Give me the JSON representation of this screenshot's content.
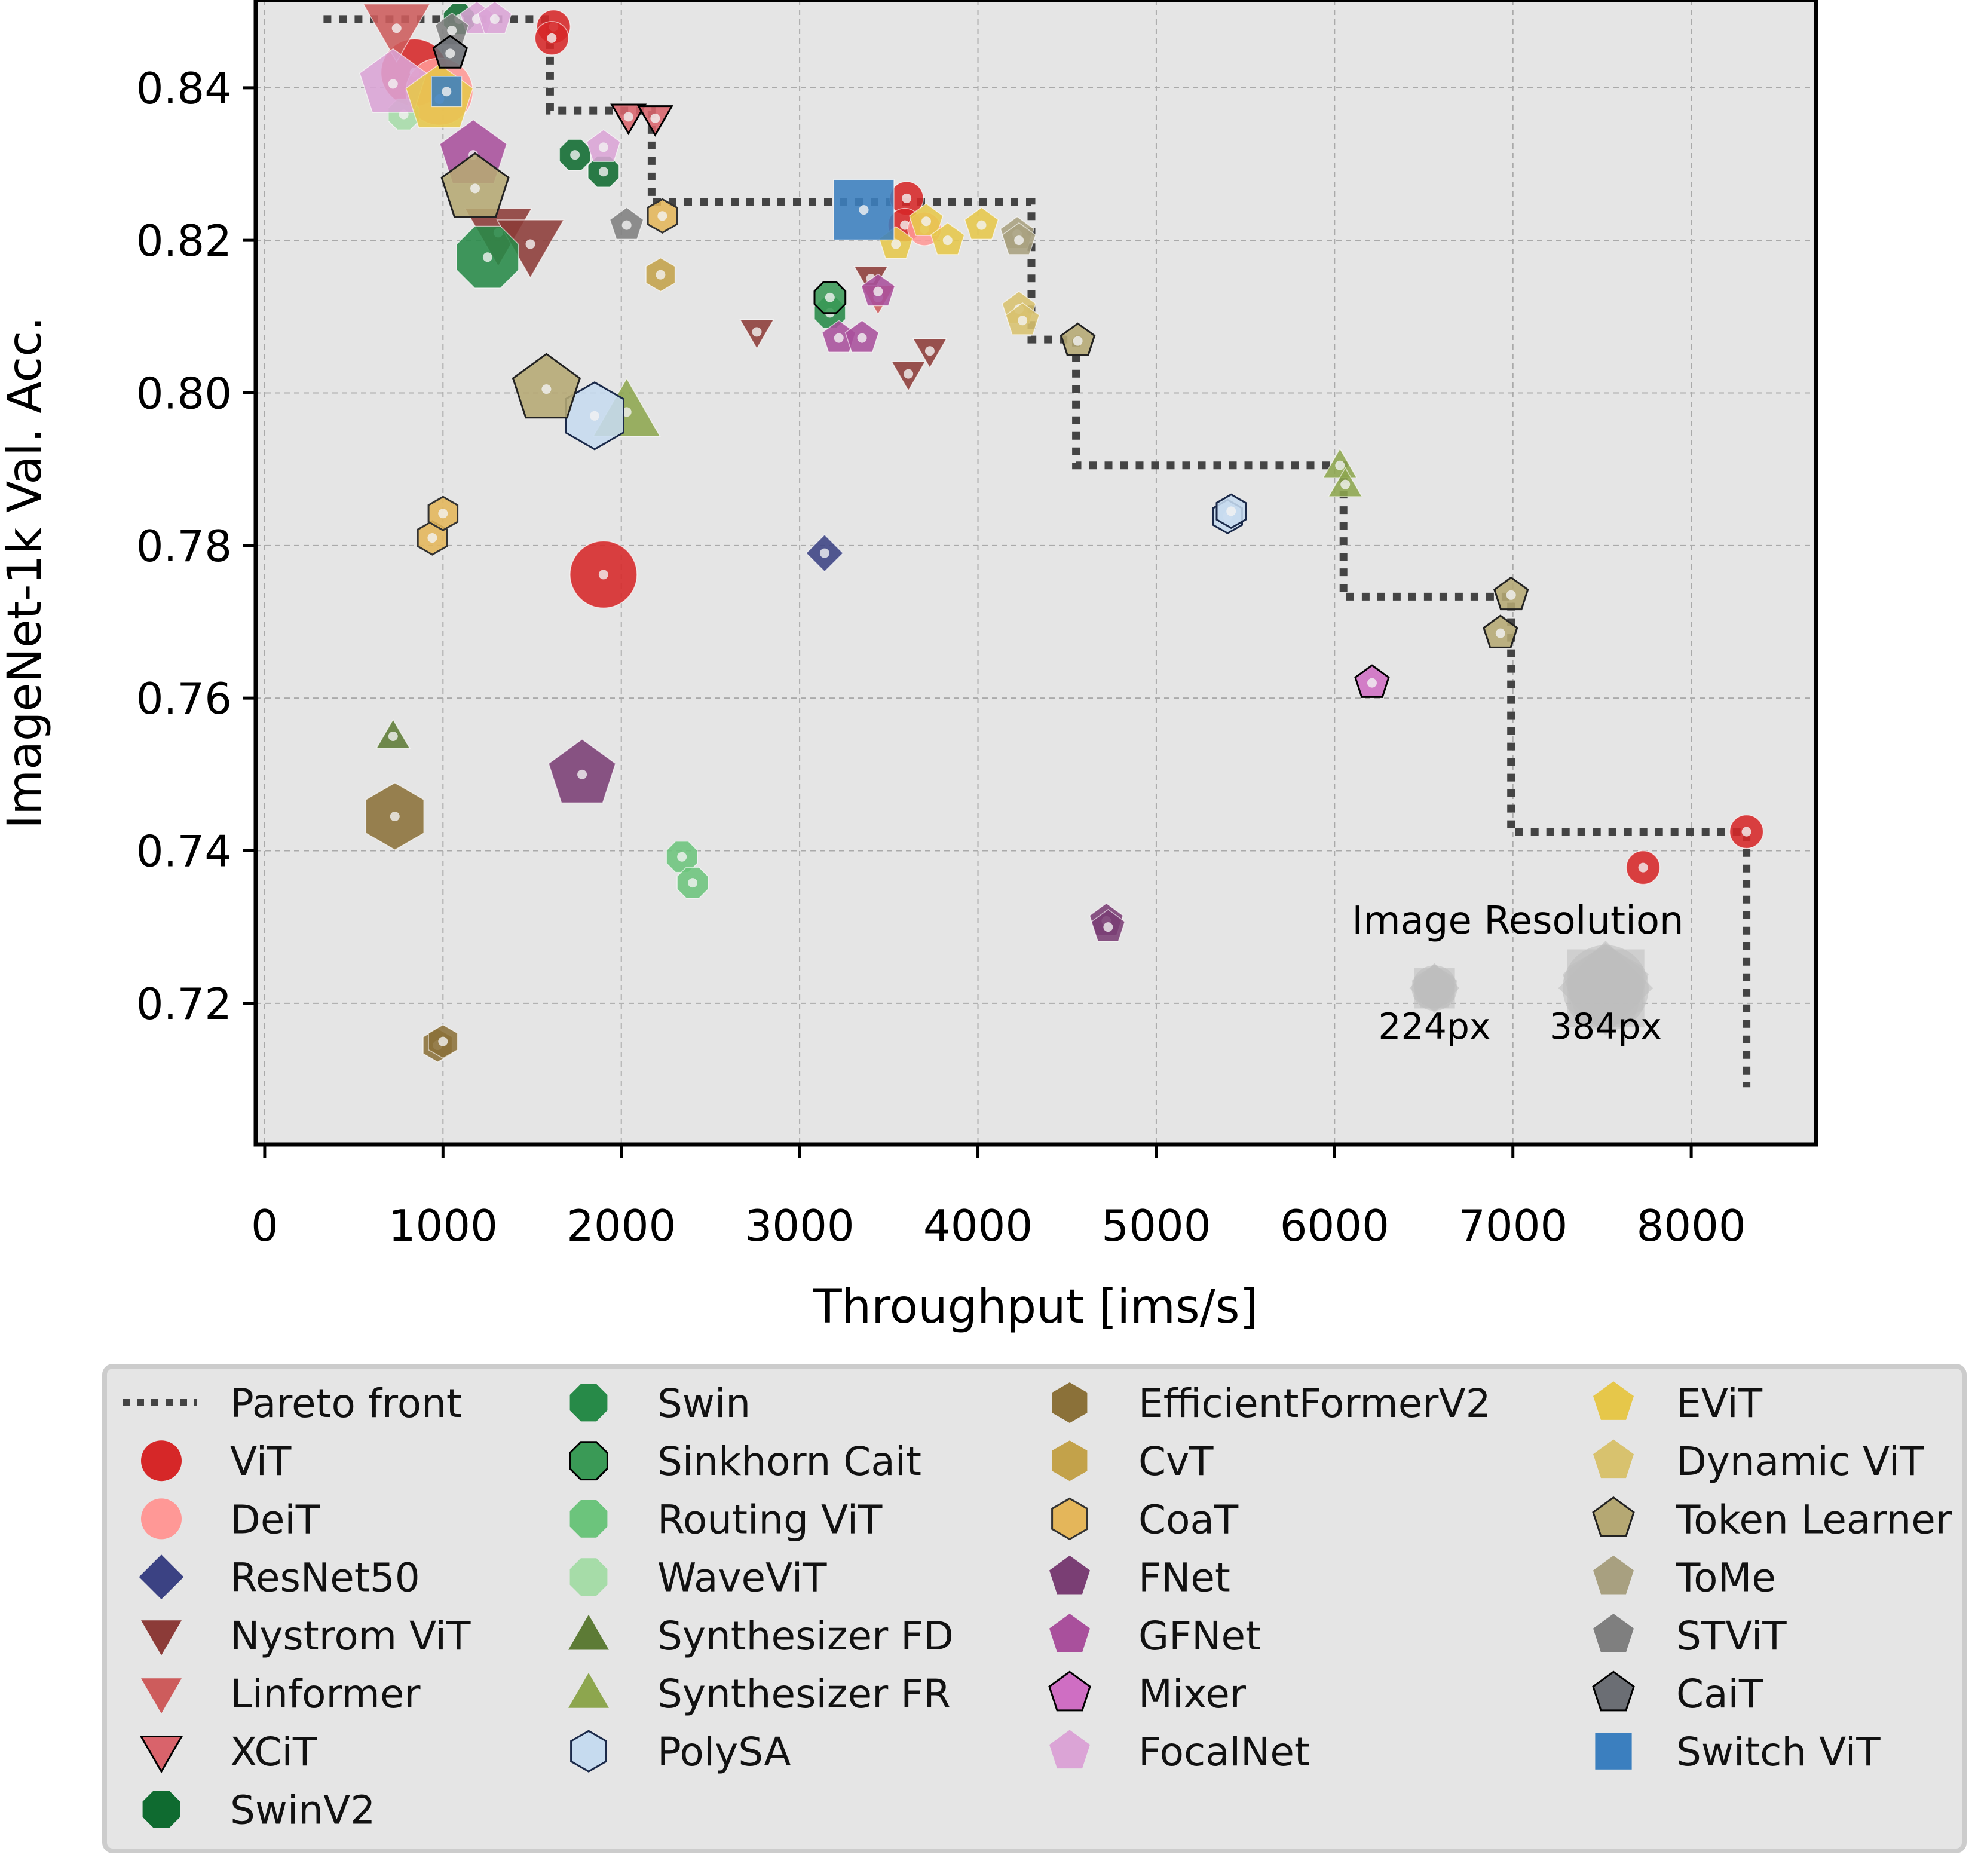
{
  "chart_data": {
    "type": "scatter",
    "xlabel": "Throughput [ims/s]",
    "ylabel": "ImageNet-1k Val. Acc.",
    "xlim": [
      -50,
      8700
    ],
    "ylim": [
      0.7015,
      0.8515
    ],
    "x_ticks": [
      0,
      1000,
      2000,
      3000,
      4000,
      5000,
      6000,
      7000,
      8000
    ],
    "x_tick_labels": [
      "0",
      "1000",
      "2000",
      "3000",
      "4000",
      "5000",
      "6000",
      "7000",
      "8000"
    ],
    "y_ticks": [
      0.72,
      0.74,
      0.76,
      0.78,
      0.8,
      0.82,
      0.84
    ],
    "y_tick_labels": [
      "0.72",
      "0.74",
      "0.76",
      "0.78",
      "0.80",
      "0.82",
      "0.84"
    ],
    "grid": true,
    "legend": {
      "placement": "below",
      "columns": 4
    },
    "resolution_legend": {
      "title": "Image Resolution",
      "small_label": "224px",
      "large_label": "384px",
      "small_x": 6560,
      "large_x": 7520,
      "y": 0.722
    },
    "pareto_front": {
      "name": "Pareto front",
      "color": "#444444",
      "x": [
        330,
        330,
        1600,
        1600,
        2170,
        2170,
        4300,
        4300,
        4550,
        4550,
        6050,
        6050,
        6990,
        6990,
        8310,
        8310
      ],
      "y": [
        0.849,
        0.849,
        0.849,
        0.837,
        0.837,
        0.825,
        0.825,
        0.807,
        0.807,
        0.7905,
        0.7905,
        0.7733,
        0.7733,
        0.7425,
        0.7425,
        0.709
      ]
    },
    "series": [
      {
        "name": "ViT",
        "marker": "circle",
        "color": "#d62728",
        "points": [
          {
            "x": 1620,
            "y": 0.848,
            "s": "m"
          },
          {
            "x": 1610,
            "y": 0.8465,
            "s": "m"
          },
          {
            "x": 840,
            "y": 0.842,
            "s": "l"
          },
          {
            "x": 1900,
            "y": 0.7762,
            "s": "l"
          },
          {
            "x": 3600,
            "y": 0.8255,
            "s": "m"
          },
          {
            "x": 3590,
            "y": 0.822,
            "s": "m"
          },
          {
            "x": 8310,
            "y": 0.7425,
            "s": "m"
          },
          {
            "x": 7730,
            "y": 0.7378,
            "s": "m"
          }
        ]
      },
      {
        "name": "DeiT",
        "marker": "circle",
        "color": "#ff9896",
        "points": [
          {
            "x": 980,
            "y": 0.8395,
            "s": "l"
          },
          {
            "x": 3700,
            "y": 0.8215,
            "s": "m"
          }
        ]
      },
      {
        "name": "ResNet50",
        "marker": "diamond",
        "color": "#3b4283",
        "points": [
          {
            "x": 3140,
            "y": 0.779,
            "s": "m"
          }
        ]
      },
      {
        "name": "Nystrom ViT",
        "marker": "triangle-down",
        "color": "#8c3b38",
        "points": [
          {
            "x": 1310,
            "y": 0.821,
            "s": "l"
          },
          {
            "x": 1490,
            "y": 0.8195,
            "s": "l"
          },
          {
            "x": 2760,
            "y": 0.808,
            "s": "m"
          },
          {
            "x": 3610,
            "y": 0.8025,
            "s": "m"
          },
          {
            "x": 3730,
            "y": 0.8055,
            "s": "m"
          },
          {
            "x": 3400,
            "y": 0.815,
            "s": "m"
          }
        ]
      },
      {
        "name": "Linformer",
        "marker": "triangle-down",
        "color": "#cd5c5c",
        "points": [
          {
            "x": 740,
            "y": 0.8478,
            "s": "l"
          },
          {
            "x": 3440,
            "y": 0.8125,
            "s": "m"
          }
        ]
      },
      {
        "name": "XCiT",
        "marker": "triangle-down",
        "color": "#d9636b",
        "points": [
          {
            "x": 2040,
            "y": 0.8362,
            "s": "m"
          },
          {
            "x": 2190,
            "y": 0.836,
            "s": "m"
          }
        ]
      },
      {
        "name": "SwinV2",
        "marker": "octagon",
        "color": "#0f6b30",
        "points": [
          {
            "x": 1740,
            "y": 0.8312,
            "s": "m"
          },
          {
            "x": 1900,
            "y": 0.829,
            "s": "m"
          },
          {
            "x": 1090,
            "y": 0.849,
            "s": "m"
          }
        ]
      },
      {
        "name": "Swin",
        "marker": "octagon",
        "color": "#278a48",
        "points": [
          {
            "x": 1250,
            "y": 0.8178,
            "s": "l"
          },
          {
            "x": 3170,
            "y": 0.8105,
            "s": "m"
          }
        ]
      },
      {
        "name": "Sinkhorn Cait",
        "marker": "octagon",
        "color": "#3a9a56",
        "points": [
          {
            "x": 3170,
            "y": 0.8125,
            "s": "m"
          }
        ]
      },
      {
        "name": "Routing ViT",
        "marker": "octagon",
        "color": "#6cc47c",
        "points": [
          {
            "x": 2340,
            "y": 0.7392,
            "s": "m"
          },
          {
            "x": 2400,
            "y": 0.7358,
            "s": "m"
          }
        ]
      },
      {
        "name": "WaveViT",
        "marker": "octagon",
        "color": "#a6dca8",
        "points": [
          {
            "x": 780,
            "y": 0.8365,
            "s": "m"
          }
        ]
      },
      {
        "name": "Synthesizer FD",
        "marker": "triangle-up",
        "color": "#5d7b36",
        "points": [
          {
            "x": 720,
            "y": 0.755,
            "s": "m"
          }
        ]
      },
      {
        "name": "Synthesizer FR",
        "marker": "triangle-up",
        "color": "#8da64e",
        "points": [
          {
            "x": 2030,
            "y": 0.7975,
            "s": "l"
          },
          {
            "x": 6030,
            "y": 0.7905,
            "s": "m"
          },
          {
            "x": 6060,
            "y": 0.788,
            "s": "m"
          }
        ]
      },
      {
        "name": "PolySA",
        "marker": "hexagon",
        "color": "#c6dbef",
        "points": [
          {
            "x": 1850,
            "y": 0.797,
            "s": "l"
          },
          {
            "x": 5400,
            "y": 0.7838,
            "s": "m"
          },
          {
            "x": 5420,
            "y": 0.7845,
            "s": "m"
          }
        ]
      },
      {
        "name": "EfficientFormerV2",
        "marker": "hexagon",
        "color": "#8b7139",
        "points": [
          {
            "x": 730,
            "y": 0.7445,
            "s": "l"
          },
          {
            "x": 970,
            "y": 0.7145,
            "s": "m"
          },
          {
            "x": 1000,
            "y": 0.715,
            "s": "m"
          }
        ]
      },
      {
        "name": "CvT",
        "marker": "hexagon",
        "color": "#c3a24a",
        "points": [
          {
            "x": 2220,
            "y": 0.8155,
            "s": "m"
          }
        ]
      },
      {
        "name": "CoaT",
        "marker": "hexagon",
        "color": "#e4b65a",
        "points": [
          {
            "x": 2230,
            "y": 0.8232,
            "s": "m"
          },
          {
            "x": 940,
            "y": 0.781,
            "s": "m"
          },
          {
            "x": 1000,
            "y": 0.7842,
            "s": "m"
          }
        ]
      },
      {
        "name": "FNet",
        "marker": "pentagon",
        "color": "#7a3e74",
        "points": [
          {
            "x": 1780,
            "y": 0.75,
            "s": "l"
          },
          {
            "x": 4720,
            "y": 0.7308,
            "s": "m"
          },
          {
            "x": 4730,
            "y": 0.73,
            "s": "m"
          }
        ]
      },
      {
        "name": "GFNet",
        "marker": "pentagon",
        "color": "#a9509c",
        "points": [
          {
            "x": 1170,
            "y": 0.8312,
            "s": "l"
          },
          {
            "x": 3220,
            "y": 0.8072,
            "s": "m"
          },
          {
            "x": 3350,
            "y": 0.8072,
            "s": "m"
          },
          {
            "x": 3440,
            "y": 0.8133,
            "s": "m"
          }
        ]
      },
      {
        "name": "Mixer",
        "marker": "pentagon",
        "color": "#cf6ec3",
        "points": [
          {
            "x": 6210,
            "y": 0.762,
            "s": "m"
          }
        ]
      },
      {
        "name": "FocalNet",
        "marker": "pentagon",
        "color": "#dba4d6",
        "points": [
          {
            "x": 720,
            "y": 0.8405,
            "s": "l"
          },
          {
            "x": 1190,
            "y": 0.849,
            "s": "m"
          },
          {
            "x": 1290,
            "y": 0.849,
            "s": "m"
          },
          {
            "x": 1900,
            "y": 0.8322,
            "s": "m"
          }
        ]
      },
      {
        "name": "EViT",
        "marker": "pentagon",
        "color": "#e6c74a",
        "points": [
          {
            "x": 980,
            "y": 0.8385,
            "s": "l"
          },
          {
            "x": 3710,
            "y": 0.8225,
            "s": "m"
          },
          {
            "x": 3830,
            "y": 0.82,
            "s": "m"
          },
          {
            "x": 4020,
            "y": 0.822,
            "s": "m"
          },
          {
            "x": 3540,
            "y": 0.8195,
            "s": "m"
          }
        ]
      },
      {
        "name": "Dynamic ViT",
        "marker": "pentagon",
        "color": "#d8c26e",
        "points": [
          {
            "x": 4230,
            "y": 0.811,
            "s": "m"
          },
          {
            "x": 4250,
            "y": 0.8095,
            "s": "m"
          }
        ]
      },
      {
        "name": "Token Learner",
        "marker": "pentagon",
        "color": "#b5a873",
        "points": [
          {
            "x": 1180,
            "y": 0.8268,
            "s": "l"
          },
          {
            "x": 1580,
            "y": 0.8005,
            "s": "l"
          },
          {
            "x": 4560,
            "y": 0.8068,
            "s": "m"
          },
          {
            "x": 6990,
            "y": 0.7735,
            "s": "m"
          },
          {
            "x": 6930,
            "y": 0.7685,
            "s": "m"
          }
        ]
      },
      {
        "name": "ToMe",
        "marker": "pentagon",
        "color": "#a8a080",
        "points": [
          {
            "x": 4220,
            "y": 0.8208,
            "s": "m"
          },
          {
            "x": 4230,
            "y": 0.82,
            "s": "m"
          }
        ]
      },
      {
        "name": "STViT",
        "marker": "pentagon",
        "color": "#7f7f7f",
        "points": [
          {
            "x": 2030,
            "y": 0.822,
            "s": "m"
          },
          {
            "x": 1050,
            "y": 0.8475,
            "s": "m"
          }
        ]
      },
      {
        "name": "CaiT",
        "marker": "pentagon",
        "color": "#6b6e74",
        "points": [
          {
            "x": 1040,
            "y": 0.8445,
            "s": "m"
          }
        ]
      },
      {
        "name": "Switch ViT",
        "marker": "square",
        "color": "#3b7fbf",
        "points": [
          {
            "x": 3360,
            "y": 0.824,
            "s": "l"
          },
          {
            "x": 1020,
            "y": 0.8395,
            "s": "m"
          }
        ]
      }
    ]
  }
}
